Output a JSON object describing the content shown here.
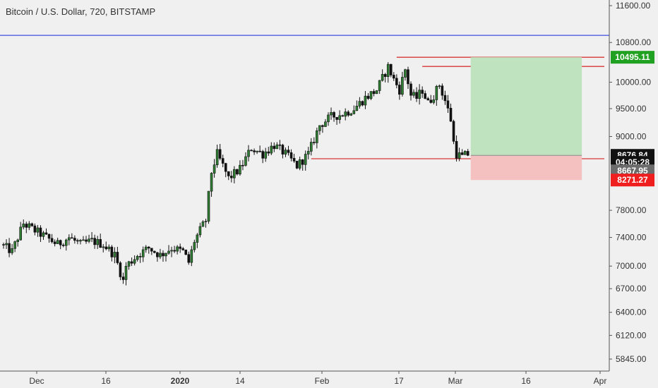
{
  "chart_data": {
    "type": "candlestick",
    "title": "Bitcoin / U.S. Dollar, 720, BITSTAMP",
    "y_axis": {
      "scale": "log",
      "range": [
        5760,
        11780
      ],
      "tick_labels": [
        "11600.00",
        "10800.00",
        "10000.00",
        "9500.00",
        "9000.00",
        "7800.00",
        "7400.00",
        "7000.00",
        "6700.00",
        "6400.00",
        "6120.00",
        "5845.00"
      ],
      "tick_values": [
        11600,
        10800,
        10000,
        9500,
        9000,
        7800,
        7400,
        7000,
        6700,
        6400,
        6120,
        5845
      ]
    },
    "x_axis": {
      "labels": [
        {
          "text": "Dec",
          "bold": false
        },
        {
          "text": "16",
          "bold": false
        },
        {
          "text": "2020",
          "bold": true
        },
        {
          "text": "14",
          "bold": false
        },
        {
          "text": "Feb",
          "bold": false
        },
        {
          "text": "17",
          "bold": false
        },
        {
          "text": "Mar",
          "bold": false
        },
        {
          "text": "16",
          "bold": false
        },
        {
          "text": "Apr",
          "bold": false
        }
      ]
    },
    "price_path": [
      [
        0,
        7300
      ],
      [
        4,
        7200
      ],
      [
        8,
        7600
      ],
      [
        12,
        7500
      ],
      [
        16,
        7400
      ],
      [
        20,
        7300
      ],
      [
        24,
        7400
      ],
      [
        28,
        7300
      ],
      [
        32,
        7350
      ],
      [
        36,
        7300
      ],
      [
        40,
        7150
      ],
      [
        43,
        6800
      ],
      [
        44,
        7000
      ],
      [
        48,
        7150
      ],
      [
        52,
        7250
      ],
      [
        56,
        7150
      ],
      [
        60,
        7250
      ],
      [
        64,
        7200
      ],
      [
        66,
        7050
      ],
      [
        68,
        7350
      ],
      [
        72,
        7650
      ],
      [
        74,
        8400
      ],
      [
        76,
        8700
      ],
      [
        80,
        8300
      ],
      [
        84,
        8450
      ],
      [
        88,
        8800
      ],
      [
        92,
        8700
      ],
      [
        96,
        8850
      ],
      [
        100,
        8700
      ],
      [
        104,
        8500
      ],
      [
        108,
        8700
      ],
      [
        112,
        9200
      ],
      [
        116,
        9350
      ],
      [
        120,
        9400
      ],
      [
        124,
        9500
      ],
      [
        128,
        9700
      ],
      [
        132,
        9850
      ],
      [
        136,
        10300
      ],
      [
        138,
        10050
      ],
      [
        140,
        9850
      ],
      [
        142,
        10250
      ],
      [
        144,
        9750
      ],
      [
        146,
        9700
      ],
      [
        148,
        9850
      ],
      [
        150,
        9600
      ],
      [
        152,
        9750
      ],
      [
        154,
        9950
      ],
      [
        156,
        9650
      ],
      [
        158,
        9300
      ],
      [
        159,
        8900
      ],
      [
        160,
        8700
      ],
      [
        162,
        8650
      ],
      [
        163,
        8677
      ]
    ],
    "candle_count": 164,
    "horizontal_lines": [
      {
        "label": "blue-resistance-line",
        "price": 10950,
        "color": "#3f4ee0",
        "from_bar": 0
      },
      {
        "label": "red-level-top",
        "price": 10495.11,
        "color": "#d93636",
        "from_bar": 138
      },
      {
        "label": "red-level-second",
        "price": 10310,
        "color": "#d93636",
        "from_bar": 147
      },
      {
        "label": "red-level-support",
        "price": 8620,
        "color": "#d93636",
        "from_bar": 108
      }
    ],
    "position": {
      "type": "long",
      "start_bar": 164,
      "end_bar": 203,
      "target": 10495.11,
      "entry": 8676.84,
      "stop": 8271.27,
      "profit_color": "#bfe3bf",
      "loss_color": "#f5c0c0"
    },
    "price_tags": [
      {
        "text": "10495.11",
        "price": 10495.11,
        "bg": "#21a121"
      },
      {
        "text": "8676.84",
        "price": 8676.84,
        "bg": "#111111"
      },
      {
        "text": "04:05:28",
        "price": 8560,
        "bg": "#111111"
      },
      {
        "text": "8667.95",
        "price": 8420,
        "bg": "#6b6b6b"
      },
      {
        "text": "8271.27",
        "price": 8271.27,
        "bg": "#ef1f1f"
      }
    ],
    "grid": false,
    "colors": {
      "background": "#f0f0f0",
      "candle_up": "#2e7d32",
      "candle_down": "#111111",
      "axis_text": "#333333"
    }
  }
}
